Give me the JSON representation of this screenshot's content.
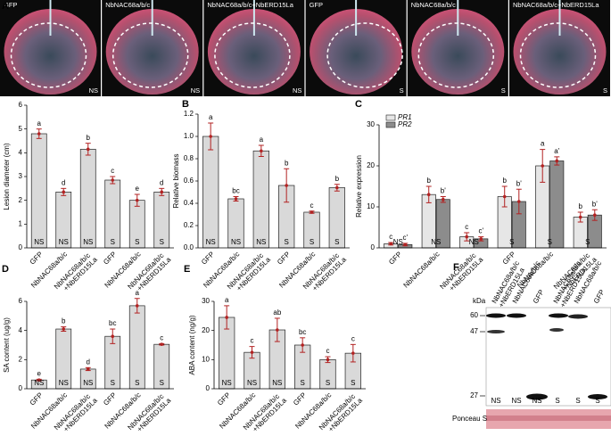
{
  "leaf_images": [
    {
      "label": "GFP",
      "corner": "NS"
    },
    {
      "label": "NbNAC68a/b/c",
      "corner": "NS"
    },
    {
      "label": "NbNAC68a/b/c+NbERD15La",
      "corner": "NS"
    },
    {
      "label": "GFP",
      "corner": "S"
    },
    {
      "label": "NbNAC68a/b/c",
      "corner": "S"
    },
    {
      "label": "NbNAC68a/b/c+NbERD15La",
      "corner": "S"
    }
  ],
  "panel_a": "A",
  "chart_data": [
    {
      "type": "bar",
      "ylabel": "Lesion diameter (cm)",
      "categories": [
        "GFP",
        "NbNAC68a/b/c",
        "NbNAC68a/b/c +NbERD15La",
        "GFP",
        "NbNAC68a/b/c",
        "NbNAC68a/b/c +NbERD15La"
      ],
      "bar_labels": [
        "NS",
        "NS",
        "NS",
        "S",
        "S",
        "S"
      ],
      "series": [
        {
          "color": "#d9d9d9",
          "values": [
            4.8,
            2.35,
            4.15,
            2.85,
            2.0,
            2.35
          ],
          "errors": [
            0.2,
            0.15,
            0.25,
            0.15,
            0.25,
            0.15
          ],
          "significance": [
            "a",
            "d",
            "b",
            "c",
            "e",
            "d"
          ]
        }
      ],
      "ylim": [
        0,
        6
      ],
      "yticks": [
        0,
        1,
        2,
        3,
        4,
        5,
        6
      ]
    },
    {
      "type": "bar",
      "panel": "B",
      "ylabel": "Relative biomass",
      "categories": [
        "GFP",
        "NbNAC68a/b/c",
        "NbNAC68a/b/c +NbERD15La",
        "GFP",
        "NbNAC68a/b/c",
        "NbNAC68a/b/c +NbERD15La"
      ],
      "bar_labels": [
        "NS",
        "NS",
        "NS",
        "S",
        "S",
        "S"
      ],
      "series": [
        {
          "color": "#d9d9d9",
          "values": [
            1.0,
            0.44,
            0.87,
            0.56,
            0.32,
            0.54
          ],
          "errors": [
            0.12,
            0.02,
            0.05,
            0.15,
            0.01,
            0.03
          ],
          "significance": [
            "a",
            "bc",
            "a",
            "b",
            "c",
            "b"
          ]
        }
      ],
      "ylim": [
        0,
        1.2
      ],
      "yticks": [
        {
          "value": 0,
          "label": "0.0"
        },
        0.2,
        0.4,
        0.6,
        0.8,
        {
          "value": 1,
          "label": "1.0"
        },
        1.2
      ]
    },
    {
      "type": "bar",
      "panel": "C",
      "ylabel": "Relative expression",
      "categories": [
        "GFP",
        "NbNAC68a/b/c",
        "NbNAC68a/b/c +NbERD15La",
        "GFP",
        "NbNAC68a/b/c",
        "NbNAC68a/b/c +NbERD15La"
      ],
      "bar_labels": [
        "NS",
        "NS",
        "NS",
        "S",
        "S",
        "S"
      ],
      "series": [
        {
          "name": "PR1",
          "color": "#e6e6e6",
          "values": [
            1.0,
            13,
            2.7,
            12.5,
            20,
            7.5
          ],
          "errors": [
            0.3,
            2,
            1,
            2.5,
            4,
            1.2
          ],
          "significance": [
            "c",
            "b",
            "c",
            "b",
            "a",
            "b"
          ]
        },
        {
          "name": "PR2",
          "color": "#8c8c8c",
          "values": [
            0.8,
            11.8,
            2.2,
            11.3,
            21.2,
            8
          ],
          "errors": [
            0.3,
            0.7,
            0.5,
            3,
            1,
            1.3
          ],
          "significance": [
            "c'",
            "b'",
            "c'",
            "b'",
            "a'",
            "b'"
          ]
        }
      ],
      "ylim": [
        0,
        30
      ],
      "yticks": [
        0,
        10,
        20,
        30
      ]
    },
    {
      "type": "bar",
      "panel": "D",
      "ylabel": "SA content (ug/g)",
      "categories": [
        "GFP",
        "NbNAC68a/b/c",
        "NbNAC68a/b/c +NbERD15La",
        "GFP",
        "NbNAC68a/b/c",
        "NbNAC68a/b/c +NbERD15La"
      ],
      "bar_labels": [
        "NS",
        "NS",
        "NS",
        "S",
        "S",
        "S"
      ],
      "series": [
        {
          "color": "#d9d9d9",
          "values": [
            0.6,
            4.1,
            1.35,
            3.6,
            5.7,
            3.05
          ],
          "errors": [
            0.05,
            0.15,
            0.1,
            0.5,
            0.5,
            0.05
          ],
          "significance": [
            "e",
            "b",
            "d",
            "bc",
            "a",
            "c"
          ]
        }
      ],
      "ylim": [
        0,
        6
      ],
      "yticks": [
        0,
        2,
        4,
        6
      ]
    },
    {
      "type": "bar",
      "panel": "E",
      "ylabel": "ABA content (ng/g)",
      "categories": [
        "GFP",
        "NbNAC68a/b/c",
        "NbNAC68a/b/c +NbERD15La",
        "GFP",
        "NbNAC68a/b/c",
        "NbNAC68a/b/c +NbERD15La"
      ],
      "bar_labels": [
        "NS",
        "NS",
        "NS",
        "S",
        "S",
        "S"
      ],
      "series": [
        {
          "color": "#d9d9d9",
          "values": [
            24.5,
            12.5,
            20.2,
            15,
            10,
            12.2
          ],
          "errors": [
            4,
            2,
            4,
            2.5,
            1,
            3
          ],
          "significance": [
            "a",
            "c",
            "ab",
            "bc",
            "c",
            "c"
          ]
        }
      ],
      "ylim": [
        0,
        30
      ],
      "yticks": [
        0,
        10,
        20,
        30
      ]
    }
  ],
  "blot": {
    "panel": "F",
    "unit": "kDa",
    "lanes": [
      "NbNAC68a/b/c +NbERD15La",
      "NbNAC68a/b/c",
      "GFP",
      "NbNAC68a/b/c +NbERD15La",
      "NbNAC68a/b/c",
      "GFP"
    ],
    "lane_labels": [
      "NS",
      "NS",
      "NS",
      "S",
      "S",
      "S"
    ],
    "markers": [
      "60",
      "47",
      "27"
    ],
    "loading": "Ponceau S"
  }
}
